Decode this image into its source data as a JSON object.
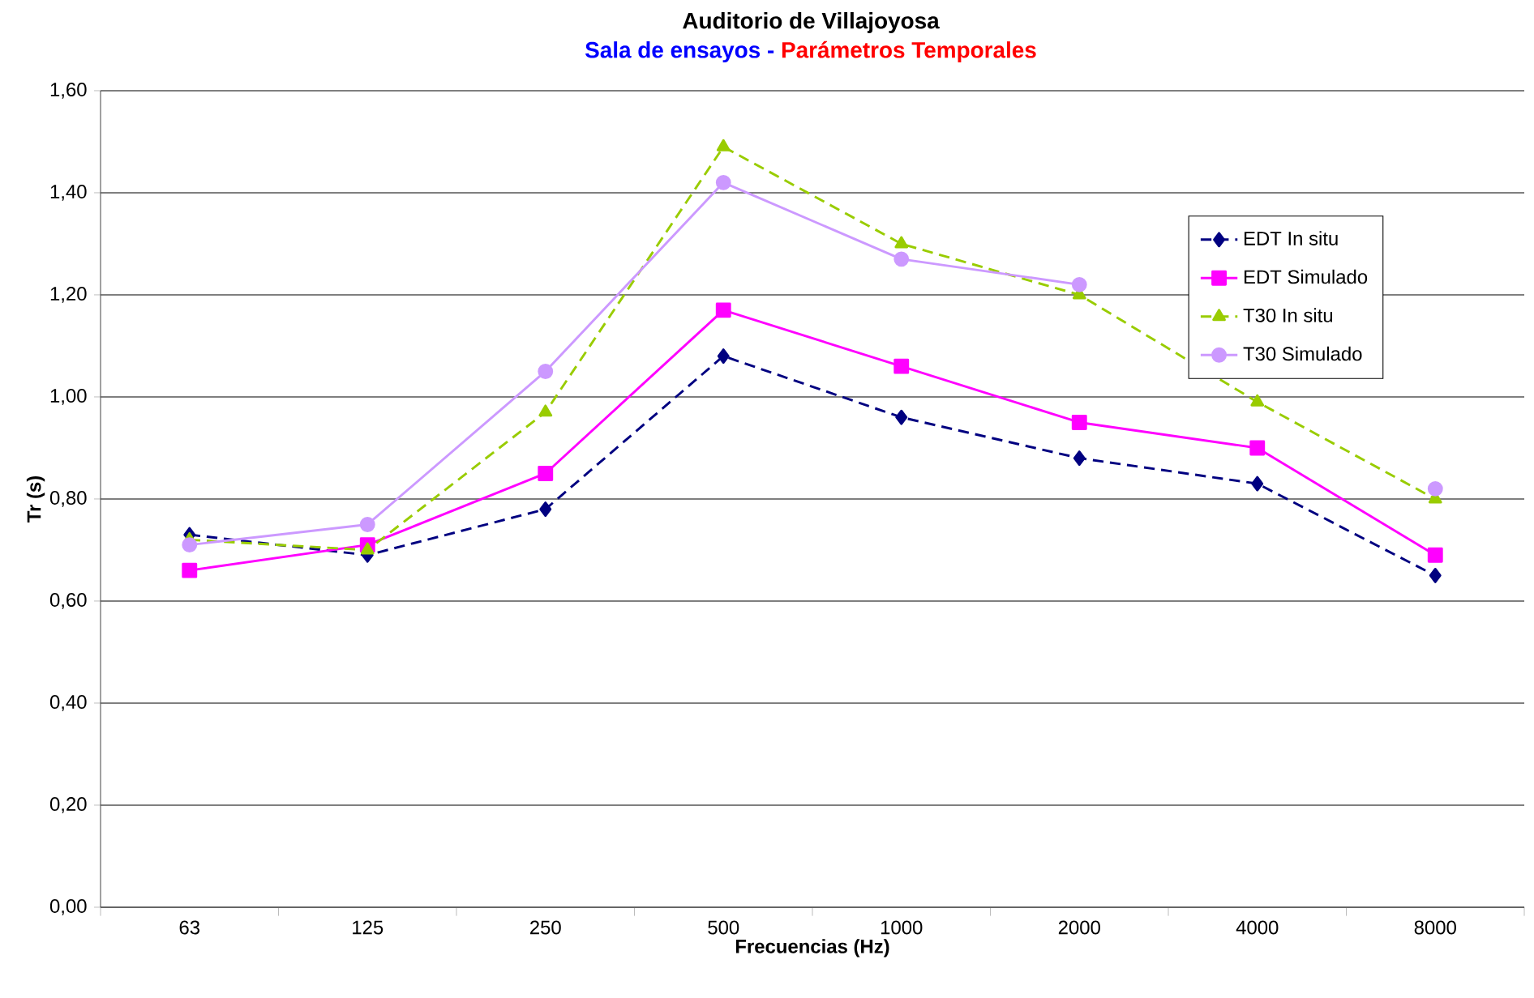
{
  "chart_data": {
    "type": "line",
    "title": "Auditorio de Villajoyosa",
    "subtitle": "Sala de ensayos -",
    "annotations": [
      "Parámetros Temporales"
    ],
    "xlabel": "Frecuencias (Hz)",
    "ylabel": "Tr (s)",
    "categories": [
      "63",
      "125",
      "250",
      "500",
      "1000",
      "2000",
      "4000",
      "8000"
    ],
    "series": [
      {
        "name": "EDT In situ",
        "color": "#000080",
        "marker": "diamond",
        "line_style": "dashed",
        "values": [
          0.73,
          0.69,
          0.78,
          1.08,
          0.96,
          0.88,
          0.83,
          0.65
        ]
      },
      {
        "name": "EDT Simulado",
        "color": "#ff00ff",
        "marker": "square",
        "line_style": "solid",
        "values": [
          0.66,
          0.71,
          0.85,
          1.17,
          1.06,
          0.95,
          0.9,
          0.69
        ]
      },
      {
        "name": "T30 In situ",
        "color": "#99cc00",
        "marker": "triangle",
        "line_style": "dashed",
        "values": [
          0.72,
          0.7,
          0.97,
          1.49,
          1.3,
          1.2,
          0.99,
          0.8
        ]
      },
      {
        "name": "T30 Simulado",
        "color": "#cc99ff",
        "marker": "circle",
        "line_style": "solid",
        "values": [
          0.71,
          0.75,
          1.05,
          1.42,
          1.27,
          1.22,
          null,
          0.82
        ]
      }
    ],
    "ylim": [
      0,
      1.6
    ],
    "yticks": [
      {
        "value": 0,
        "label": "0,00"
      },
      {
        "value": 0.2,
        "label": "0,20"
      },
      {
        "value": 0.4,
        "label": "0,40"
      },
      {
        "value": 0.6,
        "label": "0,60"
      },
      {
        "value": 0.8,
        "label": "0,80"
      },
      {
        "value": 1.0,
        "label": "1,00"
      },
      {
        "value": 1.2,
        "label": "1,20"
      },
      {
        "value": 1.4,
        "label": "1,40"
      },
      {
        "value": 1.6,
        "label": "1,60"
      }
    ],
    "grid": "y",
    "legend": "right"
  }
}
